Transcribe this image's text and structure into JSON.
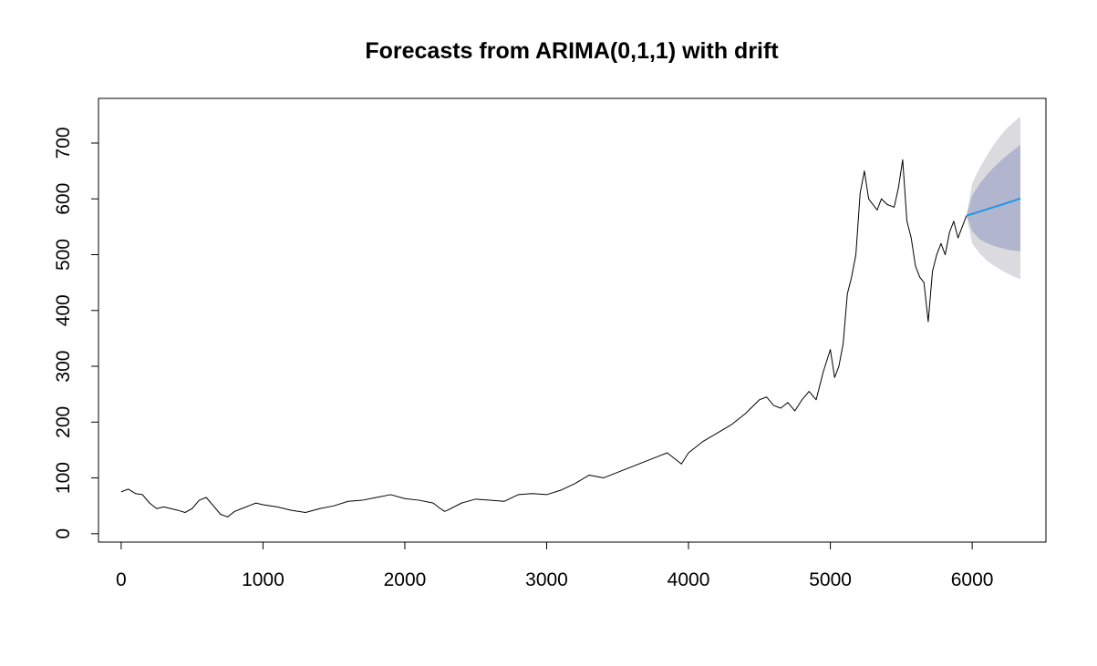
{
  "chart_data": {
    "type": "line",
    "title": "Forecasts from ARIMA(0,1,1) with drift",
    "xlabel": "",
    "ylabel": "",
    "xlim": [
      -160,
      6520
    ],
    "ylim": [
      -15,
      780
    ],
    "grid": false,
    "legend": "none",
    "x_ticks": [
      0,
      1000,
      2000,
      3000,
      4000,
      5000,
      6000
    ],
    "x_tick_labels": [
      "0",
      "1000",
      "2000",
      "3000",
      "4000",
      "5000",
      "6000"
    ],
    "y_ticks": [
      0,
      100,
      200,
      300,
      400,
      500,
      600,
      700
    ],
    "y_tick_labels": [
      "0",
      "100",
      "200",
      "300",
      "400",
      "500",
      "600",
      "700"
    ],
    "colors": {
      "history": "#000000",
      "forecast": "#2297e6",
      "band80": "#b1b5ce",
      "band95": "#dbdbdf",
      "frame": "#000000"
    },
    "history": {
      "x": [
        0,
        50,
        100,
        150,
        200,
        250,
        300,
        350,
        400,
        450,
        500,
        550,
        600,
        650,
        700,
        750,
        800,
        850,
        900,
        950,
        1000,
        1100,
        1200,
        1300,
        1400,
        1500,
        1600,
        1700,
        1800,
        1900,
        2000,
        2100,
        2200,
        2250,
        2280,
        2300,
        2400,
        2500,
        2600,
        2700,
        2800,
        2900,
        3000,
        3100,
        3200,
        3300,
        3400,
        3500,
        3600,
        3700,
        3800,
        3850,
        3900,
        3950,
        4000,
        4100,
        4200,
        4300,
        4400,
        4500,
        4550,
        4600,
        4650,
        4700,
        4750,
        4800,
        4850,
        4900,
        4950,
        5000,
        5030,
        5060,
        5090,
        5120,
        5150,
        5180,
        5210,
        5240,
        5270,
        5300,
        5330,
        5360,
        5400,
        5450,
        5480,
        5510,
        5540,
        5570,
        5600,
        5630,
        5660,
        5690,
        5720,
        5750,
        5780,
        5810,
        5840,
        5870,
        5900,
        5930,
        5960
      ],
      "y": [
        75,
        80,
        72,
        70,
        55,
        45,
        48,
        45,
        42,
        38,
        45,
        60,
        65,
        50,
        35,
        30,
        40,
        45,
        50,
        55,
        52,
        48,
        42,
        38,
        45,
        50,
        58,
        60,
        65,
        70,
        63,
        60,
        55,
        45,
        40,
        42,
        55,
        62,
        60,
        58,
        70,
        72,
        70,
        78,
        90,
        105,
        100,
        110,
        120,
        130,
        140,
        145,
        135,
        125,
        145,
        165,
        180,
        195,
        215,
        240,
        245,
        230,
        225,
        235,
        220,
        240,
        255,
        240,
        290,
        330,
        280,
        300,
        340,
        430,
        460,
        500,
        610,
        650,
        600,
        590,
        580,
        600,
        590,
        585,
        620,
        670,
        560,
        530,
        480,
        460,
        450,
        380,
        470,
        500,
        520,
        500,
        540,
        560,
        530,
        550,
        570
      ]
    },
    "forecast": {
      "x": [
        5960,
        6000,
        6050,
        6100,
        6150,
        6200,
        6250,
        6300,
        6340
      ],
      "mean": [
        570,
        573,
        577,
        581,
        585,
        589,
        593,
        597,
        601
      ],
      "lo80": [
        570,
        542,
        528,
        521,
        516,
        512,
        509,
        507,
        506
      ],
      "hi80": [
        570,
        606,
        626,
        642,
        656,
        668,
        679,
        689,
        697
      ],
      "lo95": [
        570,
        520,
        503,
        490,
        481,
        473,
        466,
        460,
        456
      ],
      "hi95": [
        570,
        628,
        654,
        676,
        696,
        713,
        728,
        739,
        748
      ]
    }
  }
}
